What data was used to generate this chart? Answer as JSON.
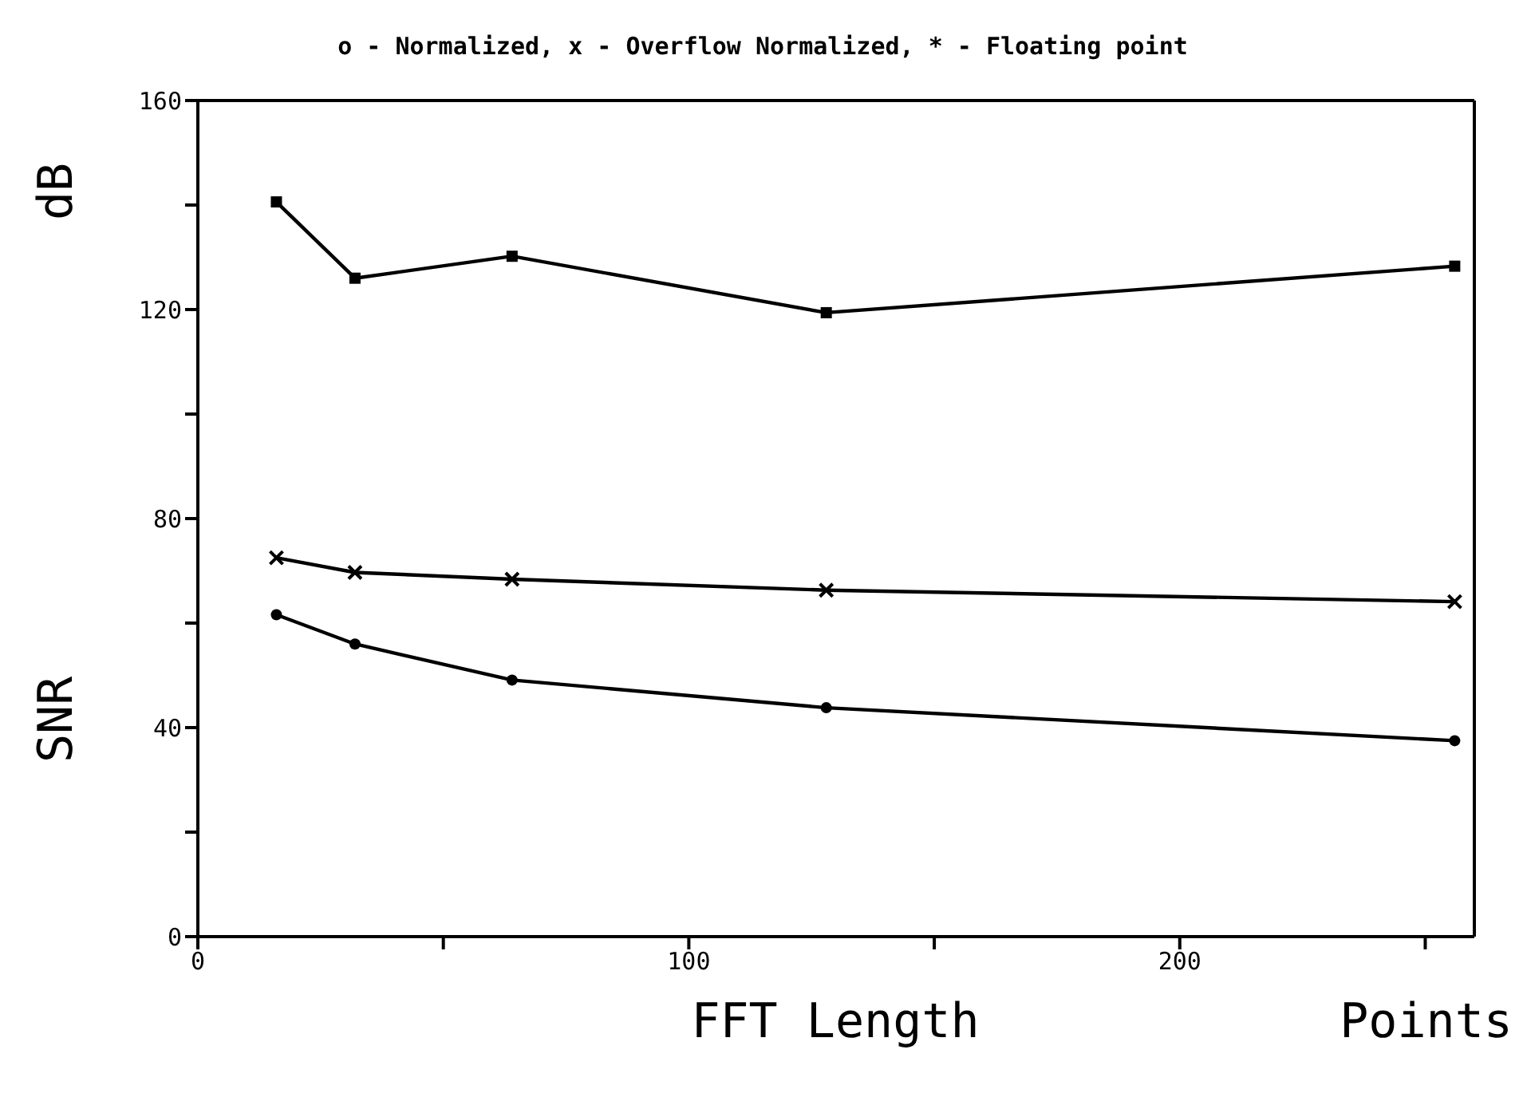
{
  "chart_data": {
    "type": "line",
    "title": "o - Normalized, x - Overflow Normalized, * - Floating point",
    "xlabel": "FFT Length Points",
    "ylabel": "SNR dB",
    "x": [
      16,
      32,
      64,
      128,
      256
    ],
    "series": [
      {
        "color": "#000000",
        "marker": "circle",
        "values": [
          61.6,
          56,
          49.1,
          43.8,
          37.5
        ]
      },
      {
        "color": "#000000",
        "marker": "cross",
        "values": [
          72.5,
          69.7,
          68.4,
          66.3,
          64.1
        ]
      },
      {
        "color": "#000000",
        "marker": "square",
        "values": [
          140.6,
          126,
          130.2,
          119.4,
          128.3
        ]
      }
    ],
    "xlim": [
      0,
      260
    ],
    "xticks": [
      0,
      {
        "value": 50,
        "label": null
      },
      100,
      {
        "value": 150,
        "label": null
      },
      200,
      {
        "value": 250,
        "label": null
      }
    ],
    "ylim": [
      0,
      160
    ],
    "yticks": [
      0,
      {
        "value": 20,
        "label": null
      },
      40,
      {
        "value": 60,
        "label": null
      },
      80,
      {
        "value": 100,
        "label": null
      },
      120,
      {
        "value": 140,
        "label": null
      },
      160
    ],
    "line_style": "solid"
  }
}
